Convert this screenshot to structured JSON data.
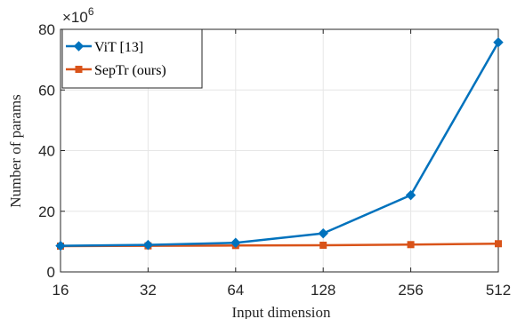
{
  "chart_data": {
    "type": "line",
    "xlabel": "Input dimension",
    "ylabel": "Number of params",
    "x_scale": "log2",
    "x": [
      16,
      32,
      64,
      128,
      256,
      512
    ],
    "x_tick_labels": [
      "16",
      "32",
      "64",
      "128",
      "256",
      "512"
    ],
    "y_tick_labels": [
      "0",
      "20",
      "40",
      "60",
      "80"
    ],
    "y_multiplier_base": "×10",
    "y_multiplier_exponent": "6",
    "ylim": [
      0,
      80
    ],
    "grid": true,
    "legend_position": "top-left",
    "series": [
      {
        "name": "ViT [13]",
        "color": "#0072BD",
        "marker": "diamond",
        "values": [
          8.6,
          8.9,
          9.6,
          12.7,
          25.3,
          75.7
        ]
      },
      {
        "name": "SepTr (ours)",
        "color": "#D95319",
        "marker": "square",
        "values": [
          8.5,
          8.6,
          8.7,
          8.8,
          9.0,
          9.3
        ]
      }
    ]
  }
}
